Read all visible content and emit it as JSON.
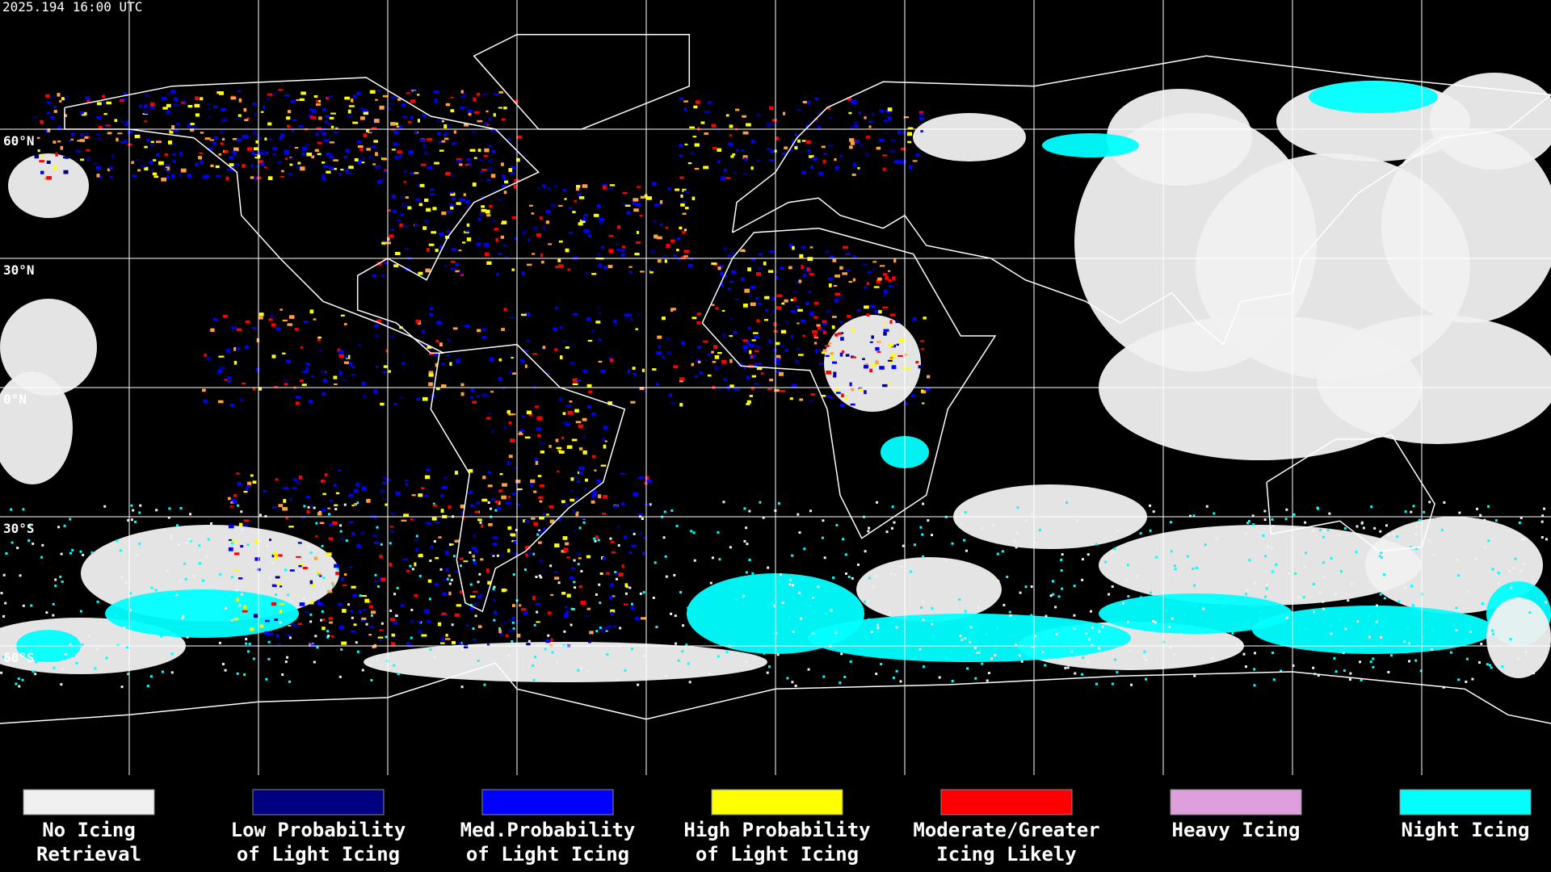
{
  "header": {
    "timestamp": "2025.194 16:00 UTC"
  },
  "map": {
    "lat_labels": [
      "60°N",
      "30°N",
      "0°N",
      "30°S",
      "60°S"
    ]
  },
  "legend": [
    {
      "lines": [
        "No Icing",
        "Retrieval"
      ],
      "color": "#f0f0f0"
    },
    {
      "lines": [
        "Low Probability",
        "of Light Icing"
      ],
      "color": "#000080"
    },
    {
      "lines": [
        "Med.Probability",
        "of Light Icing"
      ],
      "color": "#0000ff"
    },
    {
      "lines": [
        "High Probability",
        "of Light Icing"
      ],
      "color": "#ffff00"
    },
    {
      "lines": [
        "Moderate/Greater",
        "Icing Likely"
      ],
      "color": "#ff0000"
    },
    {
      "lines": [
        "Heavy Icing"
      ],
      "color": "#dda0dd"
    },
    {
      "lines": [
        "Night Icing"
      ],
      "color": "#00ffff"
    }
  ]
}
